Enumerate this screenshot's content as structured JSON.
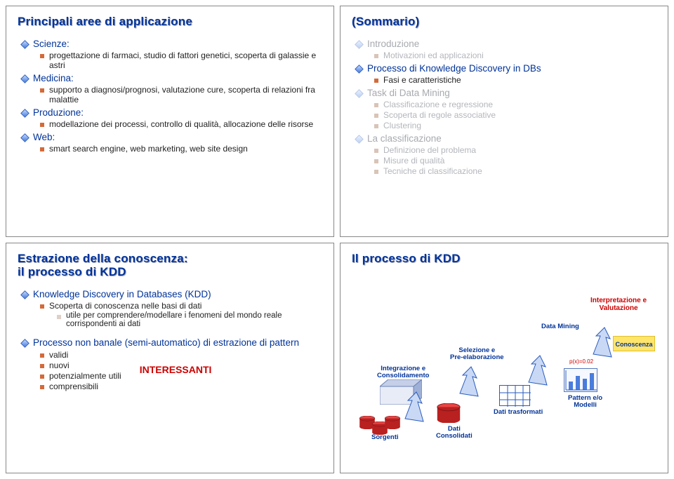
{
  "slide1": {
    "title": "Principali aree di applicazione",
    "items": [
      {
        "label": "Scienze:",
        "subs": [
          {
            "text": "progettazione di farmaci, studio di fattori genetici, scoperta di galassie e astri"
          }
        ]
      },
      {
        "label": "Medicina:",
        "subs": [
          {
            "text": "supporto a diagnosi/prognosi, valutazione cure, scoperta di relazioni fra malattie"
          }
        ]
      },
      {
        "label": "Produzione:",
        "subs": [
          {
            "text": "modellazione dei processi, controllo di qualità, allocazione delle risorse"
          }
        ]
      },
      {
        "label": "Web:",
        "subs": [
          {
            "text": "smart search engine, web marketing, web site design"
          }
        ]
      }
    ]
  },
  "slide2": {
    "title": "(Sommario)",
    "items": [
      {
        "label": "Introduzione",
        "dim": true,
        "subs": [
          {
            "text": "Motivazioni ed applicazioni",
            "dim": true
          }
        ]
      },
      {
        "label": "Processo di Knowledge Discovery in DBs",
        "dim": false,
        "subs": [
          {
            "text": "Fasi e caratteristiche",
            "dim": false
          }
        ]
      },
      {
        "label": "Task di Data Mining",
        "dim": true,
        "subs": [
          {
            "text": "Classificazione e regressione",
            "dim": true
          },
          {
            "text": "Scoperta di regole associative",
            "dim": true
          },
          {
            "text": "Clustering",
            "dim": true
          }
        ]
      },
      {
        "label": "La classificazione",
        "dim": true,
        "subs": [
          {
            "text": "Definizione del problema",
            "dim": true
          },
          {
            "text": "Misure di qualità",
            "dim": true
          },
          {
            "text": "Tecniche di classificazione",
            "dim": true
          }
        ]
      }
    ]
  },
  "slide3": {
    "title": "Estrazione della conoscenza:\nil processo di KDD",
    "a": {
      "label": "Knowledge Discovery in Databases (KDD)",
      "subs": [
        {
          "text": "Scoperta di conoscenza nelle basi di dati"
        },
        {
          "text": "utile per comprendere/modellare i fenomeni del mondo reale corrispondenti ai dati",
          "lvl": 3
        }
      ]
    },
    "b": {
      "label": "Processo non banale (semi-automatico) di estrazione di pattern",
      "subs": [
        {
          "text": "validi"
        },
        {
          "text": "nuovi"
        },
        {
          "text": "potenzialmente utili"
        },
        {
          "text": "comprensibili"
        }
      ]
    },
    "interessanti": "INTERESSANTI"
  },
  "slide4": {
    "title": "Il processo di KDD",
    "stages": {
      "integrazione": "Integrazione e\nConsolidamento",
      "sorgenti": "Sorgenti",
      "dati_cons": "Dati\nConsolidati",
      "selezione": "Selezione e\nPre-elaborazione",
      "dati_trasf": "Dati trasformati",
      "data_mining": "Data Mining",
      "pattern": "Pattern e/o\nModelli",
      "interpretazione": "Interpretazione e\nValutazione",
      "conoscenza": "Conoscenza",
      "formula": "p(x)=0.02"
    },
    "colors": {
      "arrow_fill": "#c9d9f5",
      "arrow_stroke": "#2a5bbd",
      "cyl_top": "#e84545",
      "cyl_side": "#b92020",
      "box_face": "#e8ecf7",
      "box_top": "#c5cfe8",
      "box_side": "#9fb0d6"
    }
  }
}
